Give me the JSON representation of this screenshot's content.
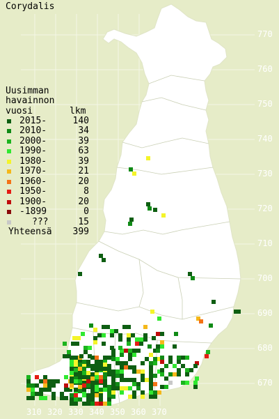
{
  "title": "Corydalis",
  "legend": {
    "header": [
      "Uusimman",
      "havainnon",
      "vuosi"
    ],
    "count_header": "lkm",
    "items": [
      {
        "label": "2015-",
        "count": "140",
        "color": "#0e5e12"
      },
      {
        "label": "2010-",
        "count": "34",
        "color": "#108a16"
      },
      {
        "label": "2000-",
        "count": "39",
        "color": "#1cb41e"
      },
      {
        "label": "1990-",
        "count": "63",
        "color": "#30e830"
      },
      {
        "label": "1980-",
        "count": "39",
        "color": "#f4f42a"
      },
      {
        "label": "1970-",
        "count": "21",
        "color": "#f4b81a"
      },
      {
        "label": "1960-",
        "count": "20",
        "color": "#f47216"
      },
      {
        "label": "1950-",
        "count": "8",
        "color": "#e41c14"
      },
      {
        "label": "1900-",
        "count": "20",
        "color": "#c00c0c"
      },
      {
        "label": "-1899",
        "count": "0",
        "color": "#8a0a0a"
      },
      {
        "label": "???",
        "count": "15",
        "color": "#c8c8c8"
      }
    ],
    "total_label": "Yhteensä",
    "total_count": "399"
  },
  "grid": {
    "y_labels": [
      "770",
      "760",
      "750",
      "740",
      "730",
      "720",
      "710",
      "700",
      "690",
      "680",
      "670"
    ],
    "x_labels": [
      "310",
      "320",
      "330",
      "340",
      "350",
      "360",
      "370"
    ]
  },
  "colors": {
    "background": "#e6ecc8",
    "land": "#ffffff",
    "border": "#c9cfb4"
  }
}
